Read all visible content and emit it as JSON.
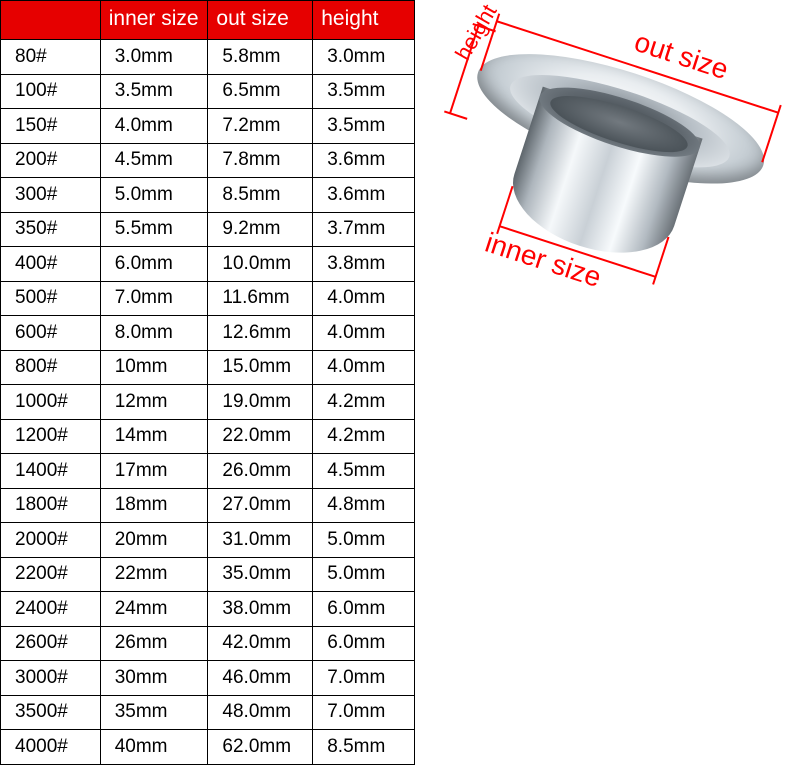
{
  "colors": {
    "header_bg": "#e60000",
    "label_color": "#ff0000",
    "border": "#000000",
    "cell_bg": "#ffffff",
    "cell_text": "#000000",
    "header_text": "#ffffff"
  },
  "table": {
    "columns": [
      "",
      "inner size",
      "out size",
      "height"
    ],
    "rows": [
      [
        "80#",
        "3.0mm",
        "5.8mm",
        "3.0mm"
      ],
      [
        "100#",
        "3.5mm",
        "6.5mm",
        "3.5mm"
      ],
      [
        "150#",
        "4.0mm",
        "7.2mm",
        "3.5mm"
      ],
      [
        "200#",
        "4.5mm",
        "7.8mm",
        "3.6mm"
      ],
      [
        "300#",
        "5.0mm",
        "8.5mm",
        "3.6mm"
      ],
      [
        "350#",
        "5.5mm",
        "9.2mm",
        "3.7mm"
      ],
      [
        "400#",
        "6.0mm",
        "10.0mm",
        "3.8mm"
      ],
      [
        "500#",
        "7.0mm",
        "11.6mm",
        "4.0mm"
      ],
      [
        "600#",
        "8.0mm",
        "12.6mm",
        "4.0mm"
      ],
      [
        "800#",
        "10mm",
        "15.0mm",
        "4.0mm"
      ],
      [
        "1000#",
        "12mm",
        "19.0mm",
        "4.2mm"
      ],
      [
        "1200#",
        "14mm",
        "22.0mm",
        "4.2mm"
      ],
      [
        "1400#",
        "17mm",
        "26.0mm",
        "4.5mm"
      ],
      [
        "1800#",
        "18mm",
        "27.0mm",
        "4.8mm"
      ],
      [
        "2000#",
        "20mm",
        "31.0mm",
        "5.0mm"
      ],
      [
        "2200#",
        "22mm",
        "35.0mm",
        "5.0mm"
      ],
      [
        "2400#",
        "24mm",
        "38.0mm",
        "6.0mm"
      ],
      [
        "2600#",
        "26mm",
        "42.0mm",
        "6.0mm"
      ],
      [
        "3000#",
        "30mm",
        "46.0mm",
        "7.0mm"
      ],
      [
        "3500#",
        "35mm",
        "48.0mm",
        "7.0mm"
      ],
      [
        "4000#",
        "40mm",
        "62.0mm",
        "8.5mm"
      ]
    ]
  },
  "diagram": {
    "labels": {
      "out": "out size",
      "height": "height",
      "inner": "inner size"
    }
  }
}
